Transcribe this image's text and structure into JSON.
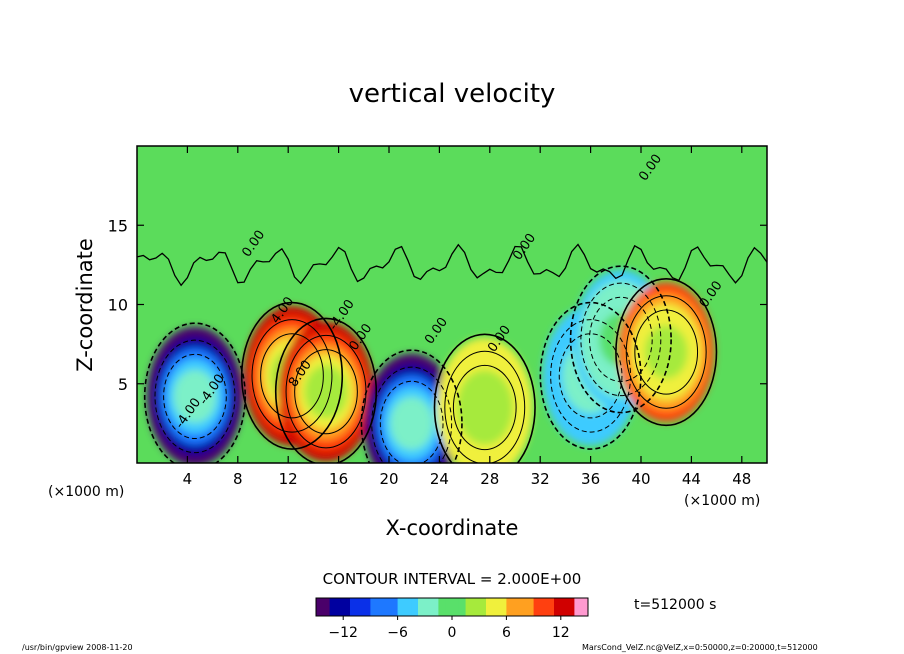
{
  "chart_data": {
    "type": "heatmap",
    "title": "vertical velocity",
    "xlabel": "X-coordinate",
    "ylabel": "Z-coordinate",
    "x_unit_left": "(×1000 m)",
    "x_unit_right": "(×1000 m)",
    "xlim": [
      0,
      50
    ],
    "ylim": [
      0,
      20
    ],
    "x_ticks": [
      4,
      8,
      12,
      16,
      20,
      24,
      28,
      32,
      36,
      40,
      44,
      48
    ],
    "y_ticks": [
      5,
      10,
      15
    ],
    "contour_interval_label": "CONTOUR INTERVAL = 2.000E+00",
    "time_label": "t=512000 s",
    "colorbar": {
      "range": [
        -15,
        15
      ],
      "ticks": [
        -12,
        -6,
        0,
        6,
        12
      ],
      "colors": [
        "#4a006a",
        "#0000a0",
        "#0a30e8",
        "#1e78ff",
        "#3ecbff",
        "#7cf0c8",
        "#59e06a",
        "#a6ea3c",
        "#f0f03c",
        "#ffa020",
        "#ff4010",
        "#d00000",
        "#ff9ad0"
      ]
    },
    "features": [
      {
        "type": "min",
        "x": 4.6,
        "z": 4.2,
        "value": -14,
        "label": "-4.00"
      },
      {
        "type": "max",
        "x": 12.3,
        "z": 5.5,
        "value": 12,
        "label": "8.00"
      },
      {
        "type": "max",
        "x": 15.0,
        "z": 4.5,
        "value": 12
      },
      {
        "type": "min",
        "x": 21.8,
        "z": 2.5,
        "value": -14
      },
      {
        "type": "max",
        "x": 27.6,
        "z": 3.5,
        "value": 6
      },
      {
        "type": "min",
        "x": 36.0,
        "z": 5.5,
        "value": -6
      },
      {
        "type": "min",
        "x": 38.4,
        "z": 7.8,
        "value": -4
      },
      {
        "type": "max",
        "x": 42.0,
        "z": 7.0,
        "value": 10
      }
    ],
    "contour_labels": [
      "0.00",
      "4.00",
      "-4.00",
      "8.00",
      "-4.00",
      "0.00",
      "0.00",
      "0.00",
      "0.00",
      "0.00",
      "0.00",
      "-4.00"
    ],
    "grid": false
  },
  "footer": {
    "left": "/usr/bin/gpview  2008-11-20",
    "right": "MarsCond_VelZ.nc@VelZ,x=0:50000,z=0:20000,t=512000"
  }
}
